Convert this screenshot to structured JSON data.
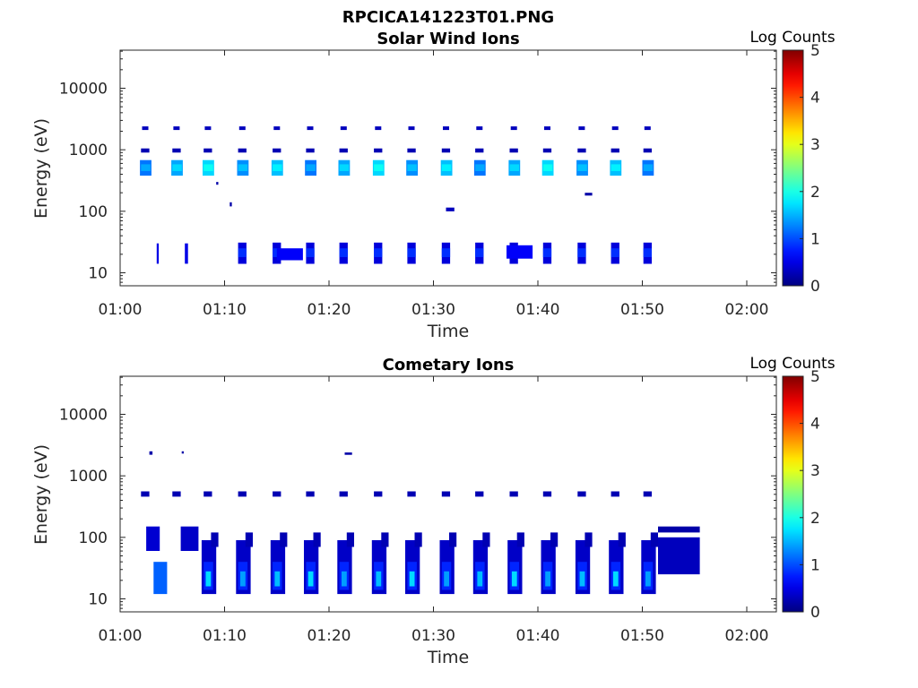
{
  "figure_title": "RPCICA141223T01.PNG",
  "chart_data": [
    {
      "type": "heatmap",
      "title": "Solar Wind Ions",
      "xlabel": "Time",
      "ylabel": "Energy (eV)",
      "x_ticks": [
        "01:00",
        "01:10",
        "01:20",
        "01:30",
        "01:40",
        "01:50",
        "02:00"
      ],
      "xlim_minutes": [
        0,
        63
      ],
      "y_scale": "log",
      "y_ticks": [
        "10",
        "100",
        "1000",
        "10000"
      ],
      "ylim": [
        6,
        45000
      ],
      "colorbar": {
        "label": "Log Counts",
        "ticks": [
          "0",
          "1",
          "2",
          "3",
          "4",
          "5"
        ],
        "range": [
          0,
          5
        ],
        "colormap": "jet"
      },
      "data_ranges_by_time": [
        {
          "t0": 0.5,
          "t1": 2.3,
          "e0": 400,
          "e1": 650,
          "v": 1.4
        }
      ]
    },
    {
      "type": "heatmap",
      "title": "Cometary Ions",
      "xlabel": "Time",
      "ylabel": "Energy (eV)",
      "x_ticks": [
        "01:00",
        "01:10",
        "01:20",
        "01:30",
        "01:40",
        "01:50",
        "02:00"
      ],
      "xlim_minutes": [
        0,
        63
      ],
      "y_scale": "log",
      "y_ticks": [
        "10",
        "100",
        "1000",
        "10000"
      ],
      "ylim": [
        6,
        45000
      ],
      "colorbar": {
        "label": "Log Counts",
        "ticks": [
          "0",
          "1",
          "2",
          "3",
          "4",
          "5"
        ],
        "range": [
          0,
          5
        ],
        "colormap": "jet"
      }
    }
  ]
}
